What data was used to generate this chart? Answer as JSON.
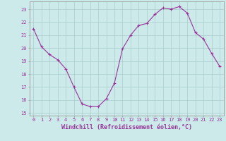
{
  "x": [
    0,
    1,
    2,
    3,
    4,
    5,
    6,
    7,
    8,
    9,
    10,
    11,
    12,
    13,
    14,
    15,
    16,
    17,
    18,
    19,
    20,
    21,
    22,
    23
  ],
  "y": [
    21.5,
    20.1,
    19.5,
    19.1,
    18.4,
    17.0,
    15.7,
    15.5,
    15.5,
    16.1,
    17.3,
    19.95,
    21.0,
    21.75,
    21.9,
    22.6,
    23.1,
    23.0,
    23.2,
    22.7,
    21.2,
    20.7,
    19.6,
    18.6
  ],
  "line_color": "#993399",
  "marker": "+",
  "marker_size": 3,
  "bg_color": "#cceaea",
  "grid_color": "#aacccc",
  "xlabel": "Windchill (Refroidissement éolien,°C)",
  "ylim": [
    14.8,
    23.6
  ],
  "xlim": [
    -0.5,
    23.5
  ],
  "yticks": [
    15,
    16,
    17,
    18,
    19,
    20,
    21,
    22,
    23
  ],
  "xticks": [
    0,
    1,
    2,
    3,
    4,
    5,
    6,
    7,
    8,
    9,
    10,
    11,
    12,
    13,
    14,
    15,
    16,
    17,
    18,
    19,
    20,
    21,
    22,
    23
  ],
  "tick_color": "#993399",
  "label_color": "#993399",
  "spine_color": "#999999",
  "tick_fontsize": 5.0,
  "xlabel_fontsize": 6.0
}
